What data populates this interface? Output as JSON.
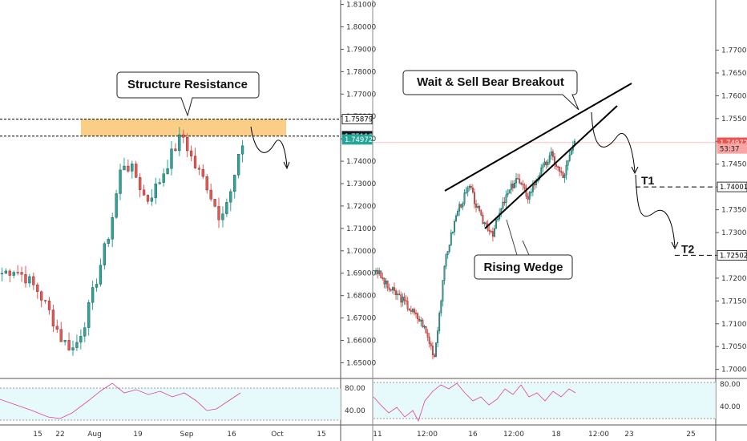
{
  "chart_data": [
    {
      "type": "candlestick",
      "title": "",
      "ylim": [
        1.643,
        1.812
      ],
      "ytick_labels": [
        "1.65000",
        "1.66000",
        "1.67000",
        "1.68000",
        "1.69000",
        "1.70000",
        "1.71000",
        "1.72000",
        "1.73000",
        "1.74000",
        "1.75000",
        "1.76000",
        "1.77000",
        "1.78000",
        "1.79000",
        "1.80000",
        "1.81000"
      ],
      "xtick_labels": [
        "15",
        "22",
        "Aug",
        "19",
        "Sep",
        "16",
        "Oct",
        "15"
      ],
      "price_badges": [
        {
          "text": "1.75879",
          "value": 1.75879,
          "style": "outline"
        },
        {
          "text": "1.75119",
          "value": 1.75119,
          "style": "dark"
        },
        {
          "text": "1.74972",
          "value": 1.74972,
          "style": "green"
        }
      ],
      "resistance_zone": {
        "low": 1.7512,
        "high": 1.7588,
        "color": "#f5a623"
      },
      "annotations": [
        {
          "text": "Structure Resistance"
        }
      ],
      "rsi": {
        "levels": [
          "80.00",
          "40.00"
        ]
      },
      "colors": {
        "up": "#26a69a",
        "down": "#ef5350"
      }
    },
    {
      "type": "candlestick",
      "title": "",
      "ylim": [
        1.698,
        1.781
      ],
      "ytick_labels": [
        "1.70000",
        "1.70500",
        "1.71000",
        "1.71500",
        "1.72000",
        "1.72500",
        "1.73000",
        "1.73500",
        "1.74000",
        "1.74500",
        "1.75000",
        "1.75500",
        "1.76000",
        "1.76500",
        "1.77000"
      ],
      "xtick_labels": [
        "11",
        "12:00",
        "16",
        "12:00",
        "18",
        "12:00",
        "23",
        "25"
      ],
      "price_badges": [
        {
          "text": "1.74972",
          "value": 1.74972,
          "style": "red"
        },
        {
          "text": "53:37",
          "value": 1.74842,
          "style": "red-light"
        },
        {
          "text": "1.74001",
          "value": 1.74001,
          "style": "outline"
        },
        {
          "text": "1.72502",
          "value": 1.72502,
          "style": "outline"
        }
      ],
      "targets": [
        {
          "text": "T1",
          "value": 1.74001
        },
        {
          "text": "T2",
          "value": 1.72502
        }
      ],
      "annotations": [
        {
          "text": "Wait & Sell Bear Breakout"
        },
        {
          "text": "Rising Wedge"
        }
      ],
      "rsi": {
        "levels": [
          "80.00",
          "40.00"
        ]
      },
      "colors": {
        "up": "#26a69a",
        "down": "#ef5350"
      }
    }
  ]
}
